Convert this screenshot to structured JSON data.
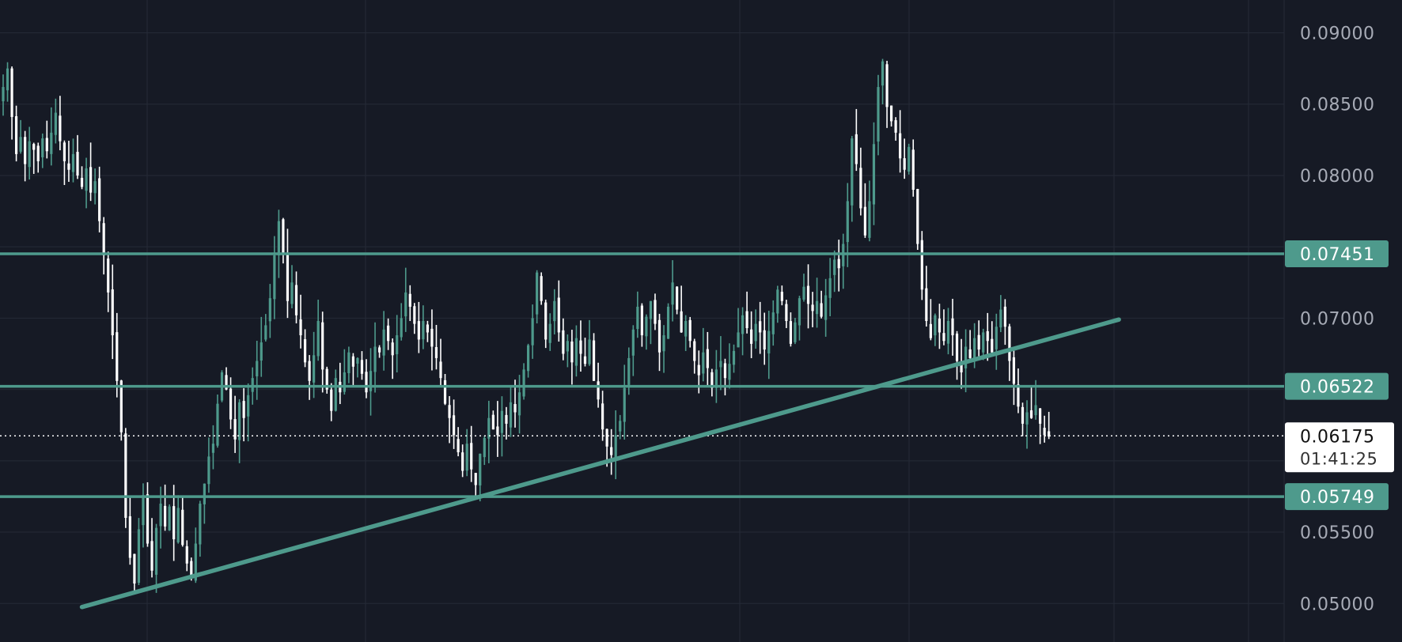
{
  "chart_data": {
    "type": "candlestick",
    "title": "",
    "xlabel": "",
    "ylabel": "",
    "ylim": [
      0.0473,
      0.0923
    ],
    "y_ticks": [
      "0.09000",
      "0.08500",
      "0.08000",
      "0.07000",
      "0.05500",
      "0.05000"
    ],
    "grid": true,
    "colors": {
      "background": "#161a25",
      "grid": "#252a37",
      "up": "#4e9a8c",
      "down": "#ffffff",
      "level_line": "#4e9a8c",
      "badge": "#4e9a8c",
      "last_price_badge": "#ffffff"
    },
    "horizontal_levels": [
      {
        "value": 0.07451,
        "label": "0.07451"
      },
      {
        "value": 0.06522,
        "label": "0.06522"
      },
      {
        "value": 0.05749,
        "label": "0.05749"
      }
    ],
    "trendline": {
      "start_index": 18,
      "start_value": 0.04975,
      "end_index": 255,
      "end_value": 0.0699
    },
    "last_price": {
      "value": 0.06175,
      "label": "0.06175",
      "countdown": "01:41:25"
    },
    "closes": [
      0.0862,
      0.0875,
      0.0841,
      0.0815,
      0.0827,
      0.0808,
      0.0824,
      0.0818,
      0.081,
      0.0826,
      0.0817,
      0.083,
      0.0844,
      0.0824,
      0.081,
      0.0804,
      0.0815,
      0.08,
      0.0792,
      0.0805,
      0.0788,
      0.0796,
      0.0768,
      0.0744,
      0.0718,
      0.0688,
      0.0656,
      0.062,
      0.056,
      0.0532,
      0.0514,
      0.0552,
      0.0576,
      0.0542,
      0.0523,
      0.0553,
      0.057,
      0.0554,
      0.0568,
      0.0545,
      0.0567,
      0.0541,
      0.0528,
      0.0519,
      0.0542,
      0.057,
      0.0584,
      0.0603,
      0.0612,
      0.064,
      0.0662,
      0.065,
      0.0629,
      0.0615,
      0.0641,
      0.063,
      0.0646,
      0.0658,
      0.067,
      0.0683,
      0.0695,
      0.0714,
      0.0744,
      0.0768,
      0.0745,
      0.0712,
      0.0725,
      0.0702,
      0.0688,
      0.0669,
      0.0656,
      0.0674,
      0.0698,
      0.0664,
      0.065,
      0.0635,
      0.0658,
      0.0648,
      0.0662,
      0.0676,
      0.0666,
      0.0672,
      0.0661,
      0.0648,
      0.0663,
      0.068,
      0.0676,
      0.0692,
      0.0684,
      0.0674,
      0.0688,
      0.07,
      0.0718,
      0.0708,
      0.0696,
      0.0685,
      0.0698,
      0.069,
      0.068,
      0.0672,
      0.0658,
      0.064,
      0.063,
      0.0618,
      0.0606,
      0.0593,
      0.0612,
      0.0594,
      0.0583,
      0.0605,
      0.0616,
      0.063,
      0.0622,
      0.0618,
      0.0635,
      0.0626,
      0.0641,
      0.0634,
      0.0648,
      0.0664,
      0.0681,
      0.07,
      0.0732,
      0.0712,
      0.0685,
      0.0696,
      0.0712,
      0.069,
      0.0675,
      0.0684,
      0.0669,
      0.0686,
      0.0675,
      0.0668,
      0.0685,
      0.0656,
      0.0643,
      0.0622,
      0.061,
      0.0604,
      0.0618,
      0.0628,
      0.0651,
      0.0672,
      0.0692,
      0.0708,
      0.0688,
      0.0701,
      0.0712,
      0.0696,
      0.0676,
      0.0688,
      0.0708,
      0.0725,
      0.0706,
      0.069,
      0.0698,
      0.0684,
      0.067,
      0.066,
      0.0676,
      0.0665,
      0.0651,
      0.0664,
      0.067,
      0.0658,
      0.0668,
      0.0677,
      0.069,
      0.0702,
      0.0693,
      0.0682,
      0.0696,
      0.069,
      0.0678,
      0.0691,
      0.0704,
      0.072,
      0.0712,
      0.0698,
      0.0682,
      0.0697,
      0.0714,
      0.0722,
      0.071,
      0.0705,
      0.0712,
      0.0701,
      0.0716,
      0.0728,
      0.0741,
      0.0735,
      0.0752,
      0.0782,
      0.0826,
      0.0808,
      0.0777,
      0.0758,
      0.0782,
      0.0822,
      0.0862,
      0.088,
      0.0848,
      0.0838,
      0.083,
      0.0812,
      0.0804,
      0.082,
      0.079,
      0.0752,
      0.072,
      0.0698,
      0.0686,
      0.0702,
      0.069,
      0.0684,
      0.0698,
      0.0688,
      0.067,
      0.0662,
      0.068,
      0.0672,
      0.0686,
      0.0678,
      0.069,
      0.0684,
      0.0676,
      0.0694,
      0.0706,
      0.0694,
      0.067,
      0.0654,
      0.0638,
      0.0626,
      0.0634,
      0.063,
      0.0639,
      0.0626,
      0.0618,
      0.0617
    ]
  }
}
